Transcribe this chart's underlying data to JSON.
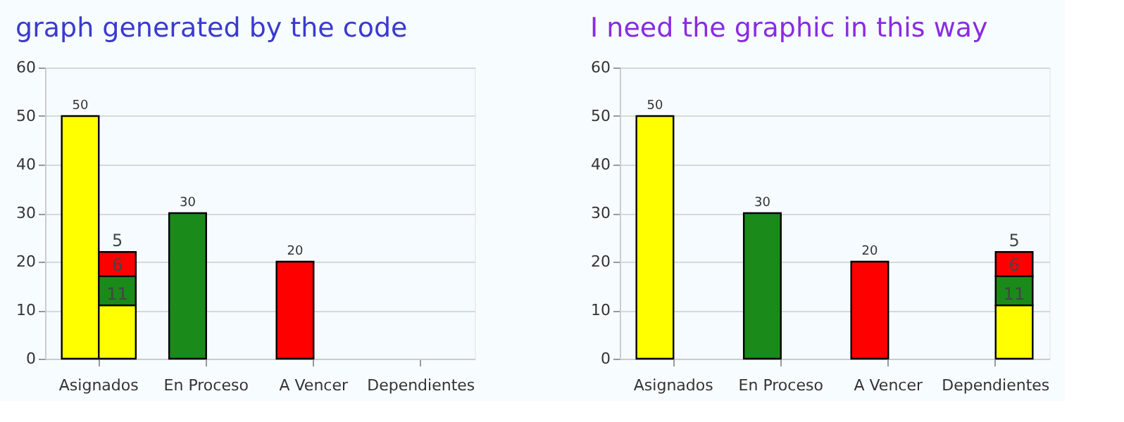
{
  "chart_data": [
    {
      "type": "bar",
      "title": "graph generated by the code",
      "categories": [
        "Asignados",
        "En Proceso",
        "A Vencer",
        "Dependientes"
      ],
      "ylim": [
        0,
        60
      ],
      "yticks": [
        0,
        10,
        20,
        30,
        40,
        50,
        60
      ],
      "grid": "y",
      "data_labels": true,
      "series": [
        {
          "colors": [
            "#ffff00",
            "#1a8a1a",
            "#ff0000",
            "#ffff00"
          ],
          "values": [
            50,
            30,
            20,
            null
          ]
        },
        {
          "color": "#ffff00",
          "values": [
            11,
            null,
            null,
            null
          ],
          "base": [
            0,
            null,
            null,
            null
          ]
        },
        {
          "color": "#1a8a1a",
          "values": [
            6,
            null,
            null,
            null
          ],
          "base": [
            11,
            null,
            null,
            null
          ]
        },
        {
          "color": "#ff0000",
          "values": [
            5,
            null,
            null,
            null
          ],
          "base": [
            17,
            null,
            null,
            null
          ]
        }
      ]
    },
    {
      "type": "bar",
      "title": "I need the graphic in this way",
      "stacked": true,
      "categories": [
        "Asignados",
        "En Proceso",
        "A Vencer",
        "Dependientes"
      ],
      "ylim": [
        0,
        60
      ],
      "yticks": [
        0,
        10,
        20,
        30,
        40,
        50,
        60
      ],
      "grid": "y",
      "data_labels": true,
      "series": [
        {
          "colors": [
            "#ffff00",
            "#1a8a1a",
            "#ff0000",
            "#ffff00"
          ],
          "values": [
            50,
            30,
            20,
            null
          ]
        },
        {
          "color": "#ffff00",
          "values": [
            null,
            null,
            null,
            11
          ]
        },
        {
          "color": "#1a8a1a",
          "values": [
            null,
            null,
            null,
            6
          ]
        },
        {
          "color": "#ff0000",
          "values": [
            null,
            null,
            null,
            5
          ]
        }
      ]
    }
  ]
}
